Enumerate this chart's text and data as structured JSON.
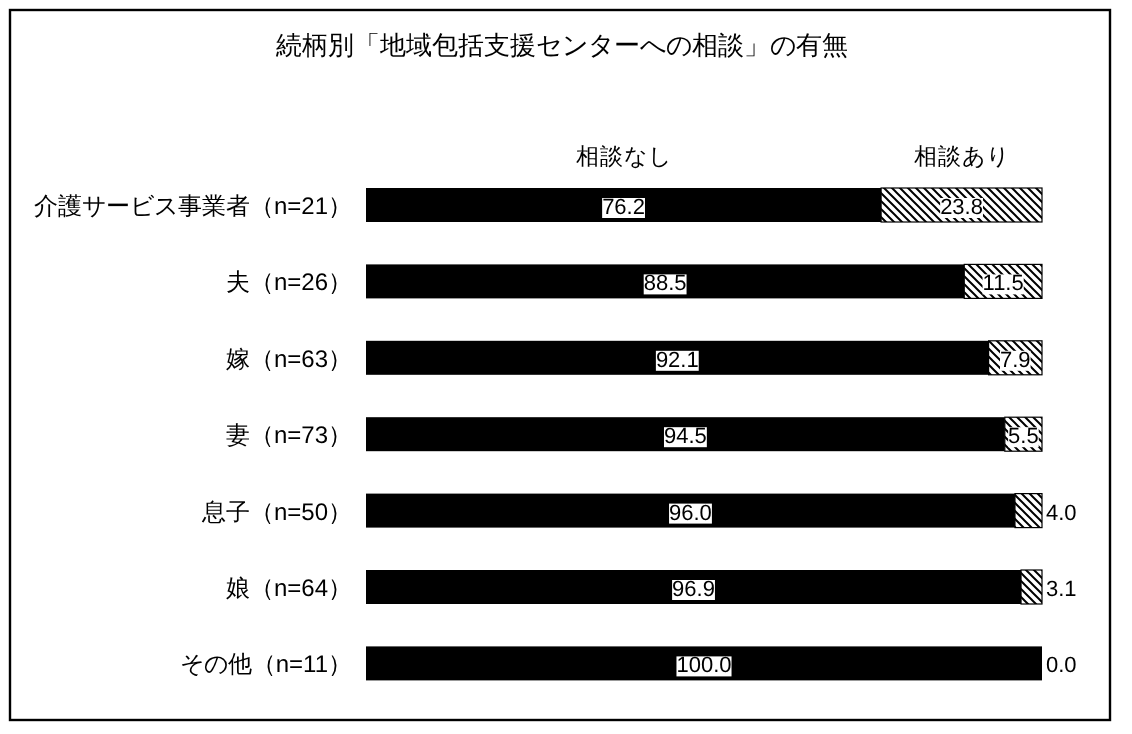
{
  "chart_data": {
    "type": "bar",
    "orientation": "horizontal",
    "stacked": true,
    "legend": "top",
    "title": "続柄別「地域包括支援センターへの相談」の有無",
    "categories": [
      "介護サービス事業者（n=21）",
      "夫（n=26）",
      "嫁（n=63）",
      "妻（n=73）",
      "息子（n=50）",
      "娘（n=64）",
      "その他（n=11）"
    ],
    "series": [
      {
        "name": "相談なし",
        "color": "#000000",
        "values": [
          76.2,
          88.5,
          92.1,
          94.5,
          96.0,
          96.9,
          100.0
        ],
        "value_labels": [
          "76.2",
          "88.5",
          "92.1",
          "94.5",
          "96.0",
          "96.9",
          "100.0"
        ]
      },
      {
        "name": "相談あり",
        "color": "#000000",
        "values": [
          23.8,
          11.5,
          7.9,
          5.5,
          4.0,
          3.1,
          0.0
        ],
        "value_labels": [
          "23.8",
          "11.5",
          "7.9",
          "5.5",
          "4.0",
          "3.1",
          "0.0"
        ]
      }
    ]
  }
}
